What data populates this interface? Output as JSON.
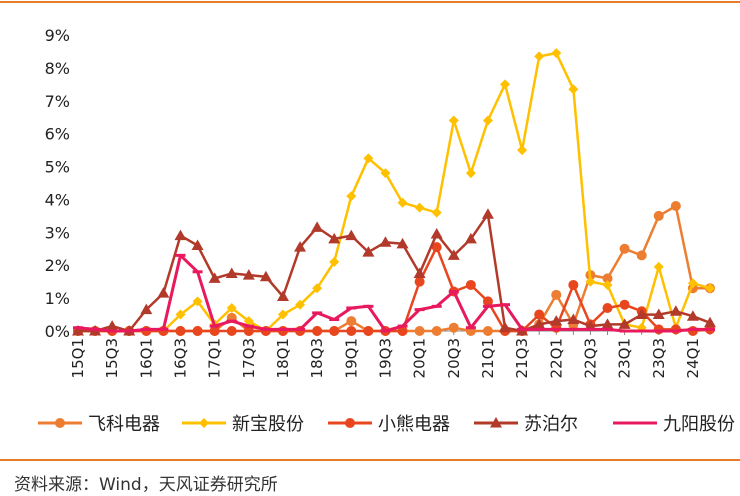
{
  "chart_data": {
    "type": "line",
    "title": "",
    "xlabel": "",
    "ylabel": "",
    "ylim": [
      0,
      9
    ],
    "y_ticks": [
      "0%",
      "1%",
      "2%",
      "3%",
      "4%",
      "5%",
      "6%",
      "7%",
      "8%",
      "9%"
    ],
    "x_tick_labels": [
      "15Q1",
      "15Q3",
      "16Q1",
      "16Q3",
      "17Q1",
      "17Q3",
      "18Q1",
      "18Q3",
      "19Q1",
      "19Q3",
      "20Q1",
      "20Q3",
      "21Q1",
      "21Q3",
      "22Q1",
      "22Q3",
      "23Q1",
      "23Q3",
      "24Q1"
    ],
    "categories": [
      "15Q1",
      "15Q2",
      "15Q3",
      "15Q4",
      "16Q1",
      "16Q2",
      "16Q3",
      "16Q4",
      "17Q1",
      "17Q2",
      "17Q3",
      "17Q4",
      "18Q1",
      "18Q2",
      "18Q3",
      "18Q4",
      "19Q1",
      "19Q2",
      "19Q3",
      "19Q4",
      "20Q1",
      "20Q2",
      "20Q3",
      "20Q4",
      "21Q1",
      "21Q2",
      "21Q3",
      "21Q4",
      "22Q1",
      "22Q2",
      "22Q3",
      "22Q4",
      "23Q1",
      "23Q2",
      "23Q3",
      "23Q4",
      "24Q1",
      "24Q2"
    ],
    "legend_position": "bottom",
    "series": [
      {
        "name": "飞科电器",
        "color": "#ed7d31",
        "marker": "circle",
        "values": [
          0,
          0,
          0,
          0,
          0,
          0,
          0,
          0,
          0,
          0.4,
          0,
          0,
          0,
          0,
          0,
          0,
          0.3,
          0,
          0,
          0,
          0,
          0,
          0.1,
          0,
          0,
          0,
          0,
          0.2,
          1.1,
          0.2,
          1.7,
          1.6,
          2.5,
          2.3,
          3.5,
          3.8,
          1.3,
          1.3
        ]
      },
      {
        "name": "新宝股份",
        "color": "#ffc000",
        "marker": "diamond",
        "values": [
          0,
          0,
          0,
          0,
          0,
          0,
          0.5,
          0.9,
          0.2,
          0.7,
          0.3,
          0,
          0.5,
          0.8,
          1.3,
          2.1,
          4.1,
          5.25,
          4.8,
          3.9,
          3.75,
          3.6,
          6.4,
          4.8,
          6.4,
          7.5,
          5.5,
          8.35,
          8.45,
          7.35,
          1.5,
          1.4,
          0.2,
          0.1,
          1.95,
          0.1,
          1.45,
          1.3
        ]
      },
      {
        "name": "小熊电器",
        "color": "#e8461e",
        "marker": "circle",
        "values": [
          0,
          0,
          0,
          0,
          0,
          0,
          0,
          0,
          0,
          0,
          0,
          0,
          0,
          0,
          0,
          0,
          0,
          0,
          0,
          0,
          1.5,
          2.55,
          1.2,
          1.4,
          0.9,
          0,
          0,
          0.5,
          0.1,
          1.4,
          0.2,
          0.7,
          0.8,
          0.6,
          0.05,
          0.05,
          0,
          0.05
        ]
      },
      {
        "name": "苏泊尔",
        "color": "#b23a2a",
        "marker": "triangle",
        "values": [
          0,
          0,
          0.15,
          0,
          0.65,
          1.15,
          2.9,
          2.6,
          1.6,
          1.75,
          1.7,
          1.65,
          1.05,
          2.55,
          3.15,
          2.8,
          2.9,
          2.4,
          2.7,
          2.65,
          1.75,
          2.95,
          2.3,
          2.8,
          3.55,
          0.1,
          0,
          0.2,
          0.3,
          0.35,
          0.15,
          0.2,
          0.2,
          0.5,
          0.5,
          0.6,
          0.45,
          0.25
        ]
      },
      {
        "name": "九阳股份",
        "color": "#e8195d",
        "marker": "dash",
        "values": [
          0.1,
          0.05,
          0,
          0,
          0.05,
          0.05,
          2.3,
          1.8,
          0.15,
          0.3,
          0.15,
          0.05,
          0.05,
          0.05,
          0.55,
          0.35,
          0.7,
          0.75,
          0,
          0.15,
          0.65,
          0.75,
          1.2,
          0.1,
          0.75,
          0.8,
          0.05,
          0.05,
          0.05,
          0.05,
          0.05,
          0.05,
          0,
          0,
          0,
          0,
          0.05,
          0.05
        ]
      }
    ]
  },
  "source_text": "资料来源：Wind，天风证券研究所"
}
